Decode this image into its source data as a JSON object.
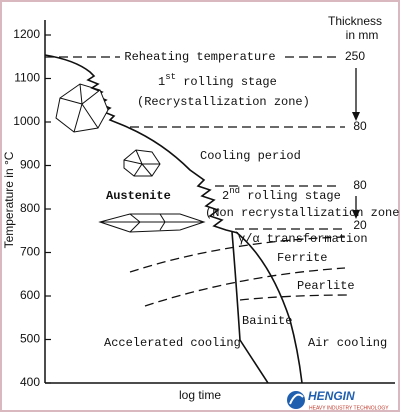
{
  "y_axis": {
    "label": "Temperature in °C",
    "ticks": [
      1200,
      1100,
      1000,
      900,
      800,
      700,
      600,
      500,
      400
    ]
  },
  "x_axis": {
    "label": "log time"
  },
  "thickness": {
    "title": "Thickness",
    "unit": "in mm",
    "labels": [
      "250",
      "80",
      "80",
      "20"
    ]
  },
  "annotations": {
    "reheating": "Reheating temperature",
    "stage1": {
      "number": "1",
      "suffix": "st",
      "text": " rolling stage",
      "zone": "(Recrystallization zone)"
    },
    "cooling_period": "Cooling period",
    "stage2": {
      "number": "2",
      "suffix": "nd",
      "text": " rolling stage",
      "zone": "(Non recrystallization zone)"
    },
    "austenite": "Austenite",
    "transformation": "γ/α transformation",
    "ferrite": "Ferrite",
    "pearlite": "Pearlite",
    "bainite": "Bainite",
    "accelerated": "Accelerated cooling",
    "air": "Air cooling"
  },
  "logo": {
    "name": "HENGIN",
    "tagline": "HEAVY INDUSTRY TECHNOLOGY"
  }
}
